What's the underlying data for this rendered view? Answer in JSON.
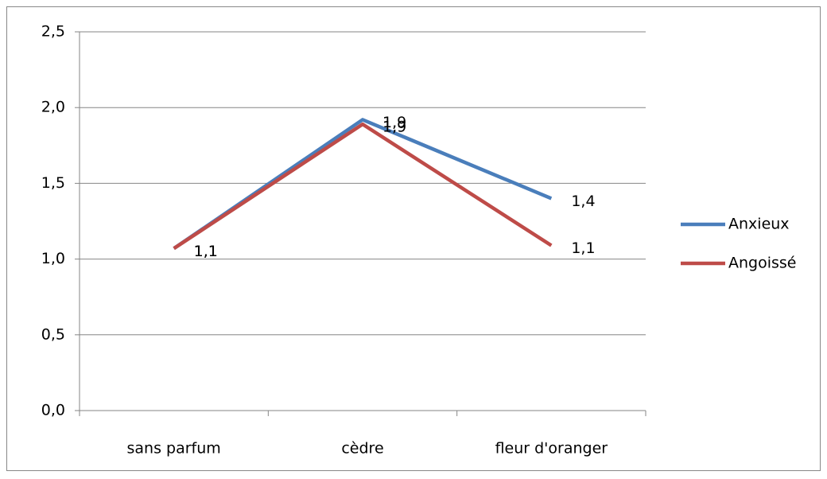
{
  "chart_data": {
    "type": "line",
    "categories": [
      "sans parfum",
      "cèdre",
      "fleur d'oranger"
    ],
    "series": [
      {
        "name": "Anxieux",
        "color": "#4a7ebb",
        "values": [
          1.07,
          1.92,
          1.4
        ],
        "value_labels": [
          "1,1",
          "1,9",
          "1,4"
        ]
      },
      {
        "name": "Angoissé",
        "color": "#be4b48",
        "values": [
          1.07,
          1.89,
          1.09
        ],
        "value_labels": [
          "1,1",
          "1,9",
          "1,1"
        ]
      }
    ],
    "ylim": [
      0,
      2.5
    ],
    "yticks": [
      {
        "value": 0,
        "label": "0,0"
      },
      {
        "value": 0.5,
        "label": "0,5"
      },
      {
        "value": 1,
        "label": "1,0"
      },
      {
        "value": 1.5,
        "label": "1,5"
      },
      {
        "value": 2,
        "label": "2,0"
      },
      {
        "value": 2.5,
        "label": "2,5"
      }
    ],
    "grid": true,
    "legend": "right"
  }
}
